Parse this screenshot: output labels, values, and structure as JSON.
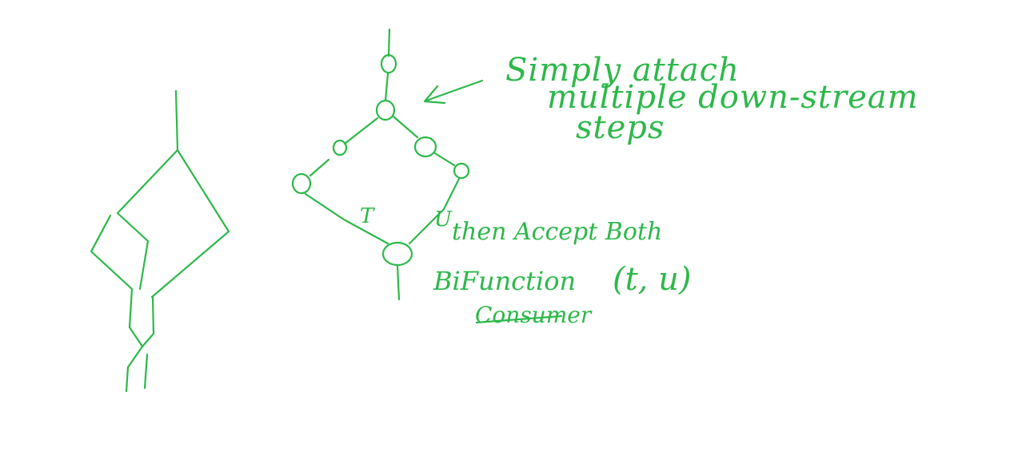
{
  "ink_color": "#2db84a",
  "background": "#ffffff",
  "annotation": {
    "line1": "Simply attach",
    "line2": "multiple down-stream",
    "line3": "steps"
  },
  "lower_note": {
    "then": "then Accept Both",
    "bifunction": "BiFunction",
    "args": "(t, u)",
    "consumer": "Consumer"
  },
  "branch_labels": {
    "left": "T",
    "right": "U"
  }
}
